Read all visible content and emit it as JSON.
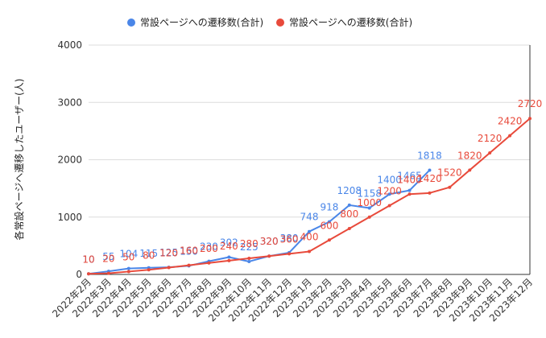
{
  "chart_data": {
    "type": "line",
    "title": "",
    "xlabel": "",
    "ylabel": "各常設ページへ遷移したユーザー(人)",
    "ylim": [
      0,
      4000
    ],
    "yticks": [
      0,
      1000,
      2000,
      3000,
      4000
    ],
    "grid": true,
    "legend_position": "top",
    "categories": [
      "2022年2月",
      "2022年3月",
      "2022年4月",
      "2022年5月",
      "2022年6月",
      "2022年7月",
      "2022年8月",
      "2022年9月",
      "2022年10月",
      "2022年11月",
      "2022年12月",
      "2023年1月",
      "2023年2月",
      "2023年3月",
      "2023年4月",
      "2023年5月",
      "2023年6月",
      "2023年7月",
      "2023年8月",
      "2023年9月",
      "2023年10月",
      "2023年11月",
      "2023年12月"
    ],
    "series": [
      {
        "name": "常設ページへの遷移数(合計)",
        "color": "#4a86e8",
        "values": [
          10,
          55,
          104,
          115,
          125,
          150,
          230,
          302,
          225,
          320,
          380,
          748,
          918,
          1208,
          1158,
          1400,
          1465,
          1818,
          null,
          null,
          null,
          null,
          null
        ]
      },
      {
        "name": "常設ページへの遷移数(合計)",
        "color": "#e84a3b",
        "values": [
          10,
          20,
          50,
          80,
          120,
          160,
          200,
          240,
          280,
          320,
          360,
          400,
          600,
          800,
          1000,
          1200,
          1400,
          1420,
          1520,
          1820,
          2120,
          2420,
          2720
        ]
      }
    ]
  }
}
